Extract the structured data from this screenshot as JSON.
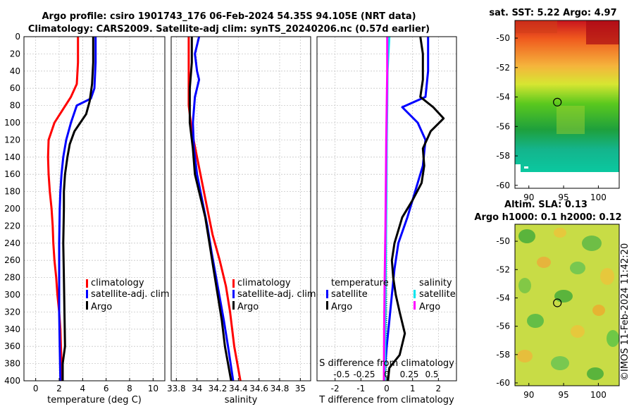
{
  "title_line1": "Argo profile: csiro 1901743_176 06-Feb-2024 54.35S 94.105E (NRT data)",
  "title_line2": "Climatology: CARS2009. Satellite-adj clim: synTS_20240206.nc (0.57d earlier)",
  "watermark": "©IMOS 11-Feb-2024 11:42:20",
  "colors": {
    "climatology": "#ff0000",
    "satellite": "#0000ff",
    "argo": "#000000",
    "sat_salinity": "#00e5ee",
    "argo_salinity": "#ff00ff"
  },
  "depth_ticks": [
    0,
    20,
    40,
    60,
    80,
    100,
    120,
    140,
    160,
    180,
    200,
    220,
    240,
    260,
    280,
    300,
    320,
    340,
    360,
    380,
    400
  ],
  "chart_data": [
    {
      "type": "line",
      "name": "temperature",
      "xlabel": "temperature (deg C)",
      "ylabel": "",
      "xlim": [
        -1,
        11
      ],
      "ylim": [
        400,
        0
      ],
      "xticks": [
        0,
        2,
        4,
        6,
        8,
        10
      ],
      "legend": [
        "climatology",
        "satellite-adj. clim",
        "Argo"
      ],
      "series": [
        {
          "name": "climatology",
          "color": "#ff0000",
          "points": [
            [
              3.6,
              0
            ],
            [
              3.6,
              30
            ],
            [
              3.5,
              55
            ],
            [
              3.0,
              70
            ],
            [
              2.3,
              85
            ],
            [
              1.6,
              100
            ],
            [
              1.1,
              120
            ],
            [
              1.05,
              140
            ],
            [
              1.1,
              160
            ],
            [
              1.2,
              180
            ],
            [
              1.35,
              200
            ],
            [
              1.45,
              220
            ],
            [
              1.5,
              240
            ],
            [
              1.6,
              260
            ],
            [
              1.75,
              280
            ],
            [
              1.85,
              300
            ],
            [
              2.0,
              320
            ],
            [
              2.1,
              340
            ],
            [
              2.15,
              360
            ],
            [
              2.2,
              380
            ],
            [
              2.25,
              400
            ]
          ]
        },
        {
          "name": "satellite-adj. clim",
          "color": "#0000ff",
          "points": [
            [
              5.1,
              0
            ],
            [
              5.1,
              30
            ],
            [
              5.0,
              60
            ],
            [
              4.7,
              72
            ],
            [
              3.5,
              80
            ],
            [
              3.0,
              100
            ],
            [
              2.6,
              120
            ],
            [
              2.35,
              140
            ],
            [
              2.2,
              160
            ],
            [
              2.1,
              180
            ],
            [
              2.05,
              200
            ],
            [
              2.0,
              240
            ],
            [
              2.0,
              280
            ],
            [
              2.0,
              320
            ],
            [
              2.05,
              360
            ],
            [
              2.1,
              400
            ]
          ]
        },
        {
          "name": "Argo",
          "color": "#000000",
          "points": [
            [
              4.9,
              0
            ],
            [
              4.9,
              30
            ],
            [
              4.8,
              55
            ],
            [
              4.6,
              75
            ],
            [
              4.3,
              90
            ],
            [
              3.8,
              100
            ],
            [
              3.3,
              110
            ],
            [
              2.9,
              125
            ],
            [
              2.7,
              140
            ],
            [
              2.5,
              160
            ],
            [
              2.4,
              180
            ],
            [
              2.4,
              200
            ],
            [
              2.35,
              240
            ],
            [
              2.4,
              280
            ],
            [
              2.45,
              320
            ],
            [
              2.5,
              360
            ],
            [
              2.3,
              380
            ],
            [
              2.3,
              400
            ]
          ]
        }
      ]
    },
    {
      "type": "line",
      "name": "salinity",
      "xlabel": "salinity",
      "ylabel": "",
      "xlim": [
        33.75,
        35.1
      ],
      "ylim": [
        400,
        0
      ],
      "xticks": [
        33.8,
        34,
        34.2,
        34.4,
        34.6,
        34.8,
        35
      ],
      "xticklabels": [
        "33.8",
        "34",
        "34.2",
        "34.4",
        "34.6",
        "34.8",
        "35"
      ],
      "legend": [
        "climatology",
        "satellite-adj. clim",
        "Argo"
      ],
      "series": [
        {
          "name": "climatology",
          "color": "#ff0000",
          "points": [
            [
              33.92,
              0
            ],
            [
              33.92,
              40
            ],
            [
              33.92,
              80
            ],
            [
              33.95,
              110
            ],
            [
              34.0,
              140
            ],
            [
              34.05,
              170
            ],
            [
              34.1,
              200
            ],
            [
              34.15,
              230
            ],
            [
              34.22,
              260
            ],
            [
              34.28,
              290
            ],
            [
              34.32,
              320
            ],
            [
              34.36,
              360
            ],
            [
              34.42,
              400
            ]
          ]
        },
        {
          "name": "satellite-adj. clim",
          "color": "#0000ff",
          "points": [
            [
              34.02,
              0
            ],
            [
              33.98,
              20
            ],
            [
              34.0,
              40
            ],
            [
              34.02,
              50
            ],
            [
              33.98,
              70
            ],
            [
              33.96,
              100
            ],
            [
              33.97,
              130
            ],
            [
              34.0,
              160
            ],
            [
              34.05,
              190
            ],
            [
              34.1,
              220
            ],
            [
              34.14,
              250
            ],
            [
              34.2,
              290
            ],
            [
              34.26,
              330
            ],
            [
              34.3,
              360
            ],
            [
              34.35,
              400
            ]
          ]
        },
        {
          "name": "Argo",
          "color": "#000000",
          "points": [
            [
              33.95,
              0
            ],
            [
              33.95,
              30
            ],
            [
              33.93,
              60
            ],
            [
              33.93,
              100
            ],
            [
              33.96,
              130
            ],
            [
              33.98,
              160
            ],
            [
              34.02,
              180
            ],
            [
              34.08,
              210
            ],
            [
              34.12,
              240
            ],
            [
              34.16,
              270
            ],
            [
              34.2,
              300
            ],
            [
              34.24,
              330
            ],
            [
              34.27,
              360
            ],
            [
              34.3,
              380
            ],
            [
              34.33,
              400
            ]
          ]
        }
      ]
    },
    {
      "type": "line",
      "name": "difference",
      "xlabel": "T difference from climatology",
      "s_axis_label": "S difference from climatology",
      "xlim": [
        -2.7,
        2.7
      ],
      "ylim": [
        400,
        0
      ],
      "xticks": [
        -2,
        -1,
        0,
        1,
        2
      ],
      "s_ticks": [
        -0.5,
        -0.25,
        0,
        0.25,
        0.5
      ],
      "s_tick_labels": [
        "-0.5",
        "-0.25",
        "0",
        "0.25",
        "0.5"
      ],
      "legend_temperature_title": "temperature",
      "legend_salinity_title": "salinity",
      "legend_temperature": [
        "satellite",
        "Argo"
      ],
      "legend_salinity": [
        "satellite",
        "Argo"
      ],
      "series": [
        {
          "name": "temperature satellite",
          "color": "#0000ff",
          "points": [
            [
              1.6,
              0
            ],
            [
              1.6,
              40
            ],
            [
              1.5,
              70
            ],
            [
              0.6,
              82
            ],
            [
              1.2,
              100
            ],
            [
              1.5,
              120
            ],
            [
              1.4,
              150
            ],
            [
              1.1,
              180
            ],
            [
              0.8,
              210
            ],
            [
              0.45,
              240
            ],
            [
              0.3,
              270
            ],
            [
              0.2,
              300
            ],
            [
              0.1,
              330
            ],
            [
              0.0,
              360
            ],
            [
              -0.1,
              400
            ]
          ]
        },
        {
          "name": "temperature Argo",
          "color": "#000000",
          "points": [
            [
              1.3,
              0
            ],
            [
              1.4,
              20
            ],
            [
              1.4,
              50
            ],
            [
              1.3,
              70
            ],
            [
              1.8,
              82
            ],
            [
              2.2,
              95
            ],
            [
              1.7,
              110
            ],
            [
              1.4,
              130
            ],
            [
              1.45,
              150
            ],
            [
              1.35,
              170
            ],
            [
              1.0,
              190
            ],
            [
              0.6,
              210
            ],
            [
              0.3,
              240
            ],
            [
              0.2,
              260
            ],
            [
              0.25,
              280
            ],
            [
              0.35,
              300
            ],
            [
              0.5,
              320
            ],
            [
              0.7,
              345
            ],
            [
              0.5,
              370
            ],
            [
              0.1,
              385
            ],
            [
              0.05,
              400
            ]
          ]
        },
        {
          "name": "salinity satellite",
          "color": "#00e5ee",
          "points": [
            [
              0.1,
              0
            ],
            [
              0.03,
              40
            ],
            [
              0.02,
              80
            ],
            [
              0.0,
              120
            ],
            [
              -0.01,
              180
            ],
            [
              -0.03,
              240
            ],
            [
              -0.05,
              300
            ],
            [
              -0.06,
              360
            ],
            [
              -0.07,
              400
            ]
          ]
        },
        {
          "name": "salinity Argo",
          "color": "#ff00ff",
          "points": [
            [
              0.02,
              0
            ],
            [
              0.02,
              40
            ],
            [
              0.0,
              80
            ],
            [
              -0.02,
              120
            ],
            [
              -0.03,
              160
            ],
            [
              -0.05,
              220
            ],
            [
              -0.08,
              280
            ],
            [
              -0.1,
              340
            ],
            [
              -0.11,
              400
            ]
          ]
        }
      ]
    },
    {
      "type": "heatmap",
      "name": "sst_map",
      "title": "sat. SST: 5.22 Argo: 4.97",
      "xlim": [
        88,
        103
      ],
      "ylim": [
        -60.2,
        -48.8
      ],
      "xticks": [
        90,
        95,
        100
      ],
      "yticks": [
        -50,
        -52,
        -54,
        -56,
        -58,
        -60
      ],
      "marker": {
        "lon": 94.1,
        "lat": -54.35
      }
    },
    {
      "type": "heatmap",
      "name": "sla_map",
      "title_line1": "Altim. SLA: 0.13",
      "title_line2": "Argo h1000: 0.1 h2000: 0.12",
      "xlim": [
        88,
        103
      ],
      "ylim": [
        -60.2,
        -48.8
      ],
      "xticks": [
        90,
        95,
        100
      ],
      "yticks": [
        -50,
        -52,
        -54,
        -56,
        -58,
        -60
      ],
      "marker": {
        "lon": 94.1,
        "lat": -54.35
      }
    }
  ]
}
